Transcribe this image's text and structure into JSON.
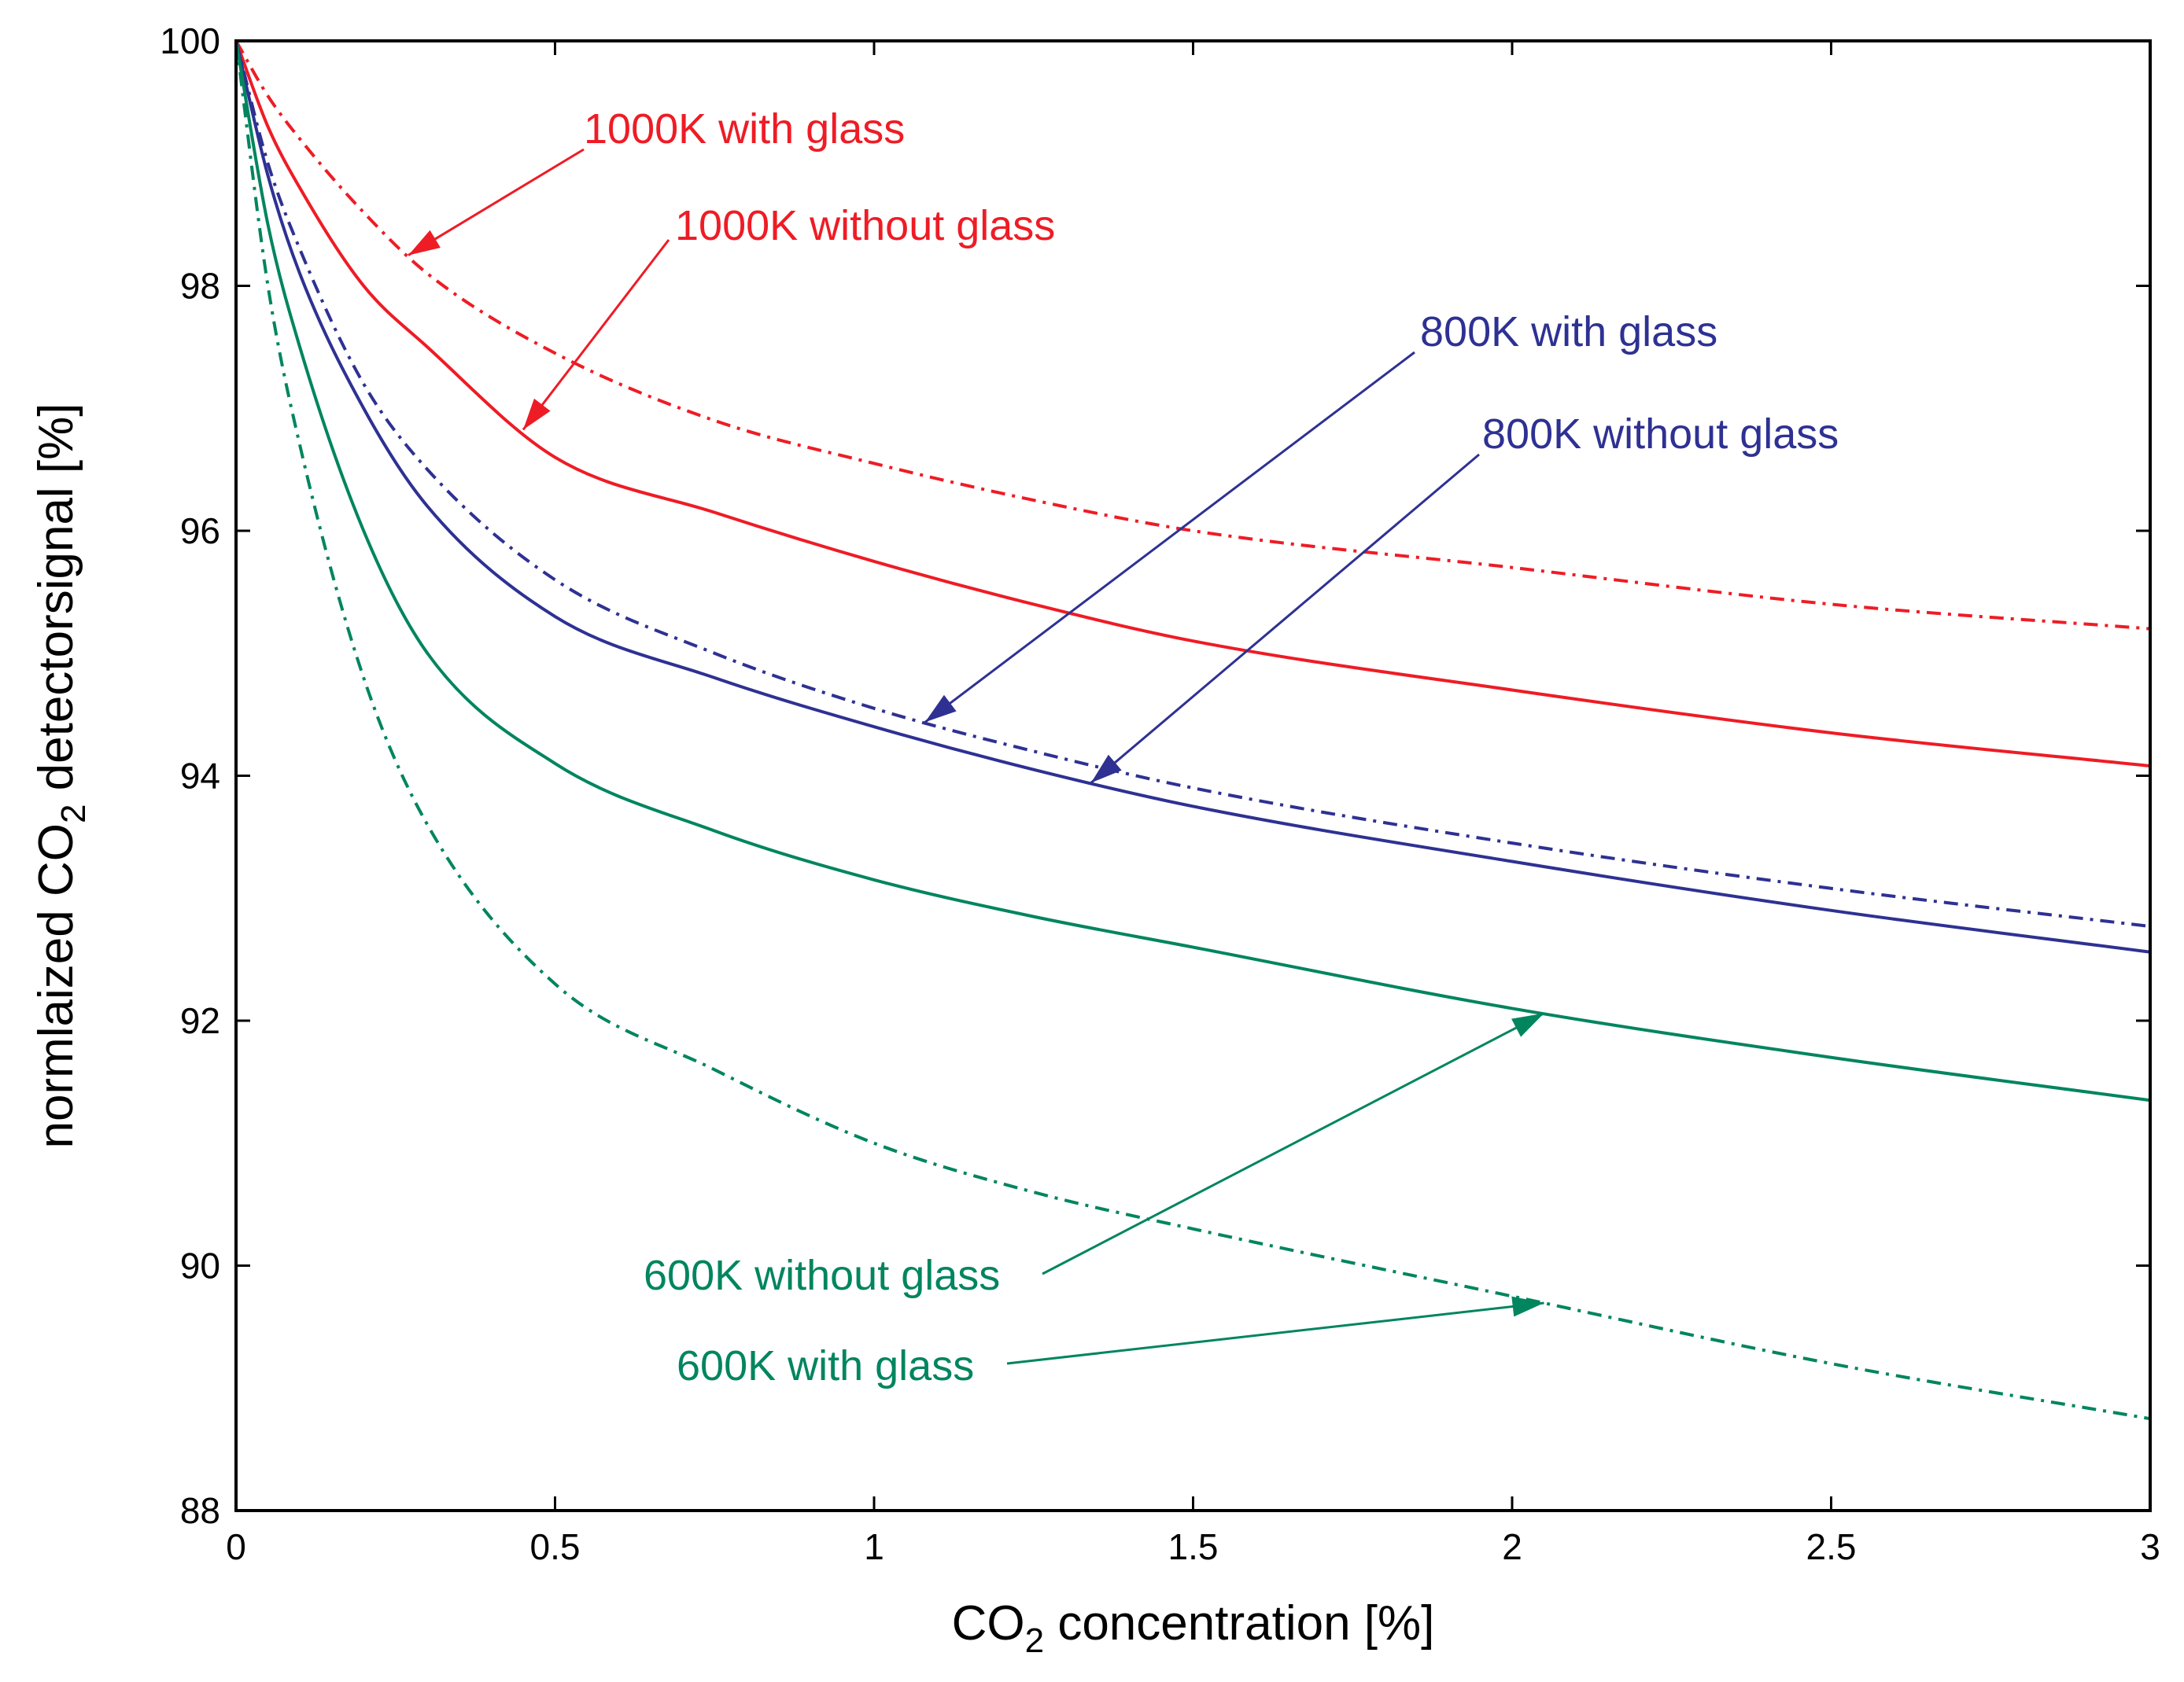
{
  "chart_data": {
    "type": "line",
    "title": "",
    "xlabel": {
      "prefix": "CO",
      "sub": "2",
      "suffix": " concentration [%]"
    },
    "ylabel": {
      "prefix": "normlaized CO",
      "sub": "2",
      "suffix": " detectorsignal [%]"
    },
    "xlim": [
      0,
      3
    ],
    "ylim": [
      88,
      100
    ],
    "grid": false,
    "x_ticks": [
      0,
      0.5,
      1,
      1.5,
      2,
      2.5,
      3
    ],
    "x_tick_labels": [
      "0",
      "0.5",
      "1",
      "1.5",
      "2",
      "2.5",
      "3"
    ],
    "y_ticks": [
      88,
      90,
      92,
      94,
      96,
      98,
      100
    ],
    "y_tick_labels": [
      "88",
      "90",
      "92",
      "94",
      "96",
      "98",
      "100"
    ],
    "x": [
      0,
      0.05,
      0.1,
      0.2,
      0.3,
      0.5,
      0.75,
      1.0,
      1.25,
      1.5,
      2.0,
      2.5,
      3.0
    ],
    "series": [
      {
        "name": "1000K with glass",
        "color": "#ee1c25",
        "dash": "dashdot",
        "values": [
          100,
          99.55,
          99.2,
          98.6,
          98.1,
          97.45,
          96.9,
          96.55,
          96.25,
          96.0,
          95.7,
          95.4,
          95.2
        ]
      },
      {
        "name": "1000K without glass",
        "color": "#ee1c25",
        "dash": "solid",
        "values": [
          100,
          99.3,
          98.8,
          98.0,
          97.5,
          96.6,
          96.15,
          95.75,
          95.4,
          95.1,
          94.7,
          94.35,
          94.08
        ]
      },
      {
        "name": "800K with glass",
        "color": "#2e3192",
        "dash": "dashdot",
        "values": [
          100,
          99.0,
          98.3,
          97.2,
          96.5,
          95.6,
          95.0,
          94.55,
          94.2,
          93.9,
          93.45,
          93.08,
          92.77
        ]
      },
      {
        "name": "800K without glass",
        "color": "#2e3192",
        "dash": "solid",
        "values": [
          100,
          98.9,
          98.1,
          97.0,
          96.2,
          95.3,
          94.8,
          94.4,
          94.05,
          93.75,
          93.3,
          92.9,
          92.56
        ]
      },
      {
        "name": "600K without glass",
        "color": "#00855f",
        "dash": "solid",
        "values": [
          100,
          98.5,
          97.5,
          96.0,
          95.0,
          94.1,
          93.55,
          93.15,
          92.85,
          92.6,
          92.1,
          91.7,
          91.35
        ]
      },
      {
        "name": "600K with glass",
        "color": "#00855f",
        "dash": "dashdot",
        "values": [
          100,
          98.0,
          96.7,
          94.8,
          93.6,
          92.3,
          91.6,
          91.0,
          90.6,
          90.3,
          89.75,
          89.2,
          88.75
        ]
      }
    ],
    "annotations": [
      {
        "text": "1000K with glass",
        "color": "#ee1c25",
        "series": "1000K with glass",
        "point_x": 0.27
      },
      {
        "text": "1000K without glass",
        "color": "#ee1c25",
        "series": "1000K without glass",
        "point_x": 0.45
      },
      {
        "text": "800K with glass",
        "color": "#2e3192",
        "series": "800K with glass",
        "point_x": 1.08
      },
      {
        "text": "800K without glass",
        "color": "#2e3192",
        "series": "800K without glass",
        "point_x": 1.34
      },
      {
        "text": "600K without glass",
        "color": "#00855f",
        "series": "600K without glass",
        "point_x": 2.05
      },
      {
        "text": "600K with glass",
        "color": "#00855f",
        "series": "600K with glass",
        "point_x": 2.05
      }
    ]
  }
}
